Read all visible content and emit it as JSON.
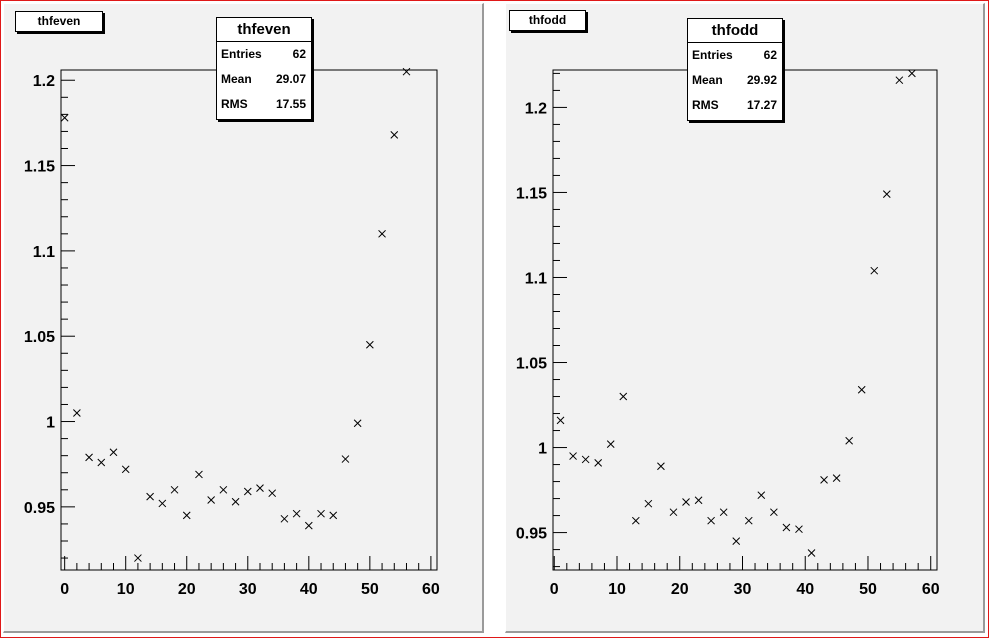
{
  "panels": [
    {
      "tag": "thfeven",
      "stats": {
        "title": "thfeven",
        "rows": [
          {
            "label": "Entries",
            "value": "62"
          },
          {
            "label": "Mean",
            "value": "29.07"
          },
          {
            "label": "RMS",
            "value": "17.55"
          }
        ]
      }
    },
    {
      "tag": "thfodd",
      "stats": {
        "title": "thfodd",
        "rows": [
          {
            "label": "Entries",
            "value": "62"
          },
          {
            "label": "Mean",
            "value": "29.92"
          },
          {
            "label": "RMS",
            "value": "17.27"
          }
        ]
      }
    }
  ],
  "chart_data": [
    {
      "type": "scatter",
      "title": "thfeven",
      "marker": "x",
      "xlim": [
        -0.6,
        61
      ],
      "ylim": [
        0.913,
        1.206
      ],
      "x_ticks": [
        0,
        10,
        20,
        30,
        40,
        50,
        60
      ],
      "x_tick_labels": [
        "0",
        "10",
        "20",
        "30",
        "40",
        "50",
        "60"
      ],
      "y_ticks": [
        0.95,
        1.0,
        1.05,
        1.1,
        1.15,
        1.2
      ],
      "y_tick_labels": [
        "0.95",
        "1",
        "1.05",
        "1.1",
        "1.15",
        "1.2"
      ],
      "x": [
        0,
        2,
        4,
        6,
        8,
        10,
        12,
        14,
        16,
        18,
        20,
        22,
        24,
        26,
        28,
        30,
        32,
        34,
        36,
        38,
        40,
        42,
        44,
        46,
        48,
        50,
        52,
        54,
        56
      ],
      "y": [
        1.178,
        1.005,
        0.979,
        0.976,
        0.982,
        0.972,
        0.92,
        0.956,
        0.952,
        0.96,
        0.945,
        0.969,
        0.954,
        0.96,
        0.953,
        0.959,
        0.961,
        0.958,
        0.943,
        0.946,
        0.939,
        0.946,
        0.945,
        0.978,
        0.999,
        1.045,
        1.11,
        1.168,
        1.205
      ]
    },
    {
      "type": "scatter",
      "title": "thfodd",
      "marker": "x",
      "xlim": [
        -0.2,
        61
      ],
      "ylim": [
        0.928,
        1.222
      ],
      "x_ticks": [
        0,
        10,
        20,
        30,
        40,
        50,
        60
      ],
      "x_tick_labels": [
        "0",
        "10",
        "20",
        "30",
        "40",
        "50",
        "60"
      ],
      "y_ticks": [
        0.95,
        1.0,
        1.05,
        1.1,
        1.15,
        1.2
      ],
      "y_tick_labels": [
        "0.95",
        "1",
        "1.05",
        "1.1",
        "1.15",
        "1.2"
      ],
      "x": [
        1,
        3,
        5,
        7,
        9,
        11,
        13,
        15,
        17,
        19,
        21,
        23,
        25,
        27,
        29,
        31,
        33,
        35,
        37,
        39,
        41,
        43,
        45,
        47,
        49,
        51,
        53,
        55,
        57
      ],
      "y": [
        1.016,
        0.995,
        0.993,
        0.991,
        1.002,
        1.03,
        0.957,
        0.967,
        0.989,
        0.962,
        0.968,
        0.969,
        0.957,
        0.962,
        0.945,
        0.957,
        0.972,
        0.962,
        0.953,
        0.952,
        0.938,
        0.981,
        0.982,
        1.004,
        1.034,
        1.104,
        1.149,
        1.216,
        1.22
      ]
    }
  ]
}
